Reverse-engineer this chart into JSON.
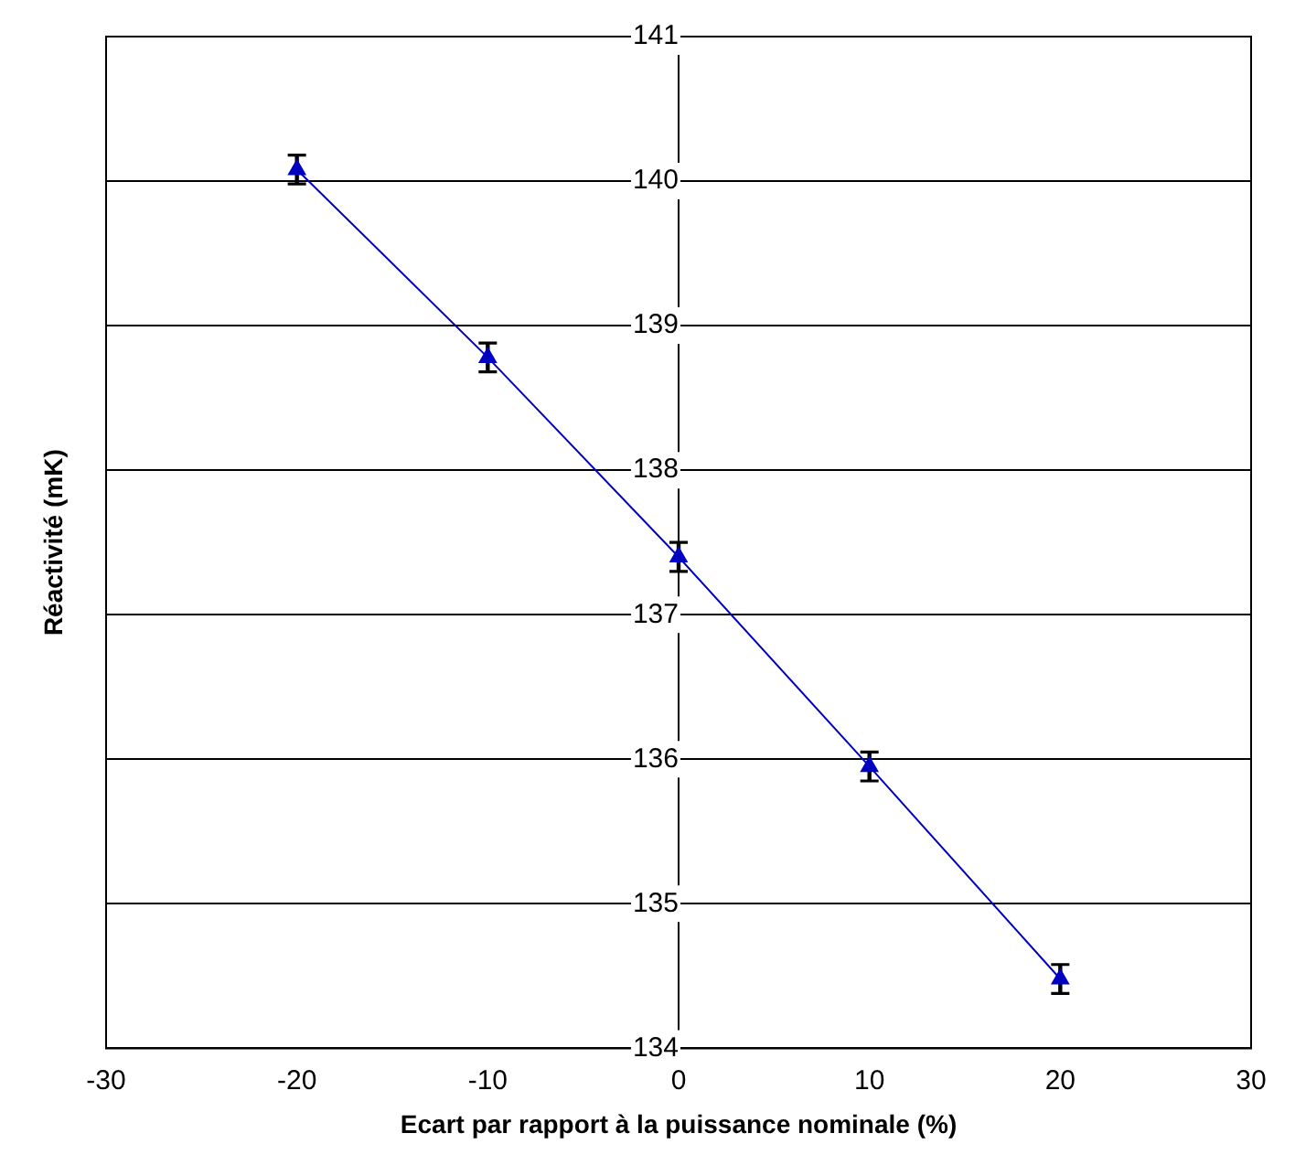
{
  "chart_data": {
    "type": "line",
    "xlabel": "Ecart par rapport à la puissance nominale (%)",
    "ylabel": "Réactivité (mK)",
    "x": [
      -20,
      -10,
      0,
      10,
      20
    ],
    "series": [
      {
        "color": "#0000c0",
        "values": [
          140.08,
          138.78,
          137.4,
          135.95,
          134.48
        ],
        "errors": [
          0.1,
          0.1,
          0.1,
          0.1,
          0.1
        ]
      }
    ],
    "xlim": [
      -30,
      30
    ],
    "xticks": [
      -30,
      -20,
      -10,
      0,
      10,
      20,
      30
    ],
    "ylim": [
      134,
      141
    ],
    "yticks": [
      134,
      135,
      136,
      137,
      138,
      139,
      140,
      141
    ],
    "grid": "y",
    "legend": false,
    "marker": "triangle",
    "line_style": "solid"
  }
}
